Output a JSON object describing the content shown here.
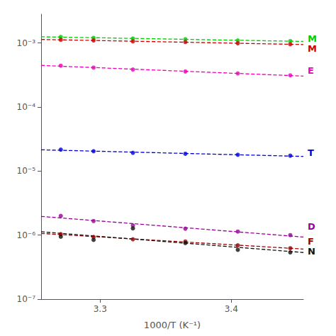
{
  "chart_data": {
    "type": "scatter",
    "xlabel": "1000/T (K⁻¹)",
    "xlim": [
      3.255,
      3.455
    ],
    "ylim": [
      -7.0,
      -2.55
    ],
    "xticks": [
      3.3,
      3.4
    ],
    "yticks": [
      {
        "value": -3,
        "label": "10⁻³"
      },
      {
        "value": -4,
        "label": "10⁻⁴"
      },
      {
        "value": -5,
        "label": "10⁻⁵"
      },
      {
        "value": -6,
        "label": "10⁻⁶"
      },
      {
        "value": -7,
        "label": "10⁻⁷"
      }
    ],
    "grid": false,
    "series": [
      {
        "color": "#00cc00",
        "marker": "circle",
        "x": [
          3.27,
          3.295,
          3.325,
          3.365,
          3.405,
          3.445
        ],
        "values": [
          -2.905,
          -2.92,
          -2.93,
          -2.94,
          -2.96,
          -2.97
        ],
        "fit": {
          "line_style": "dashed",
          "x": [
            3.255,
            3.455
          ],
          "values": [
            -2.90267,
            -2.97536
          ]
        }
      },
      {
        "color": "#cc0000",
        "marker": "circle",
        "x": [
          3.27,
          3.295,
          3.325,
          3.365,
          3.405,
          3.445
        ],
        "values": [
          -2.95,
          -2.96,
          -2.975,
          -2.985,
          -3.005,
          -3.02
        ],
        "fit": {
          "line_style": "dashed",
          "x": [
            3.255,
            3.455
          ],
          "values": [
            -2.94445,
            -3.02386
          ]
        }
      },
      {
        "color": "#ee00bb",
        "marker": "circle",
        "x": [
          3.27,
          3.295,
          3.325,
          3.365,
          3.405,
          3.445
        ],
        "values": [
          -3.355,
          -3.385,
          -3.415,
          -3.445,
          -3.475,
          -3.505
        ],
        "fit": {
          "line_style": "dashed",
          "x": [
            3.255,
            3.455
          ],
          "values": [
            -3.34982,
            -3.51715
          ]
        }
      },
      {
        "color": "#0000dd",
        "marker": "circle",
        "x": [
          3.27,
          3.295,
          3.325,
          3.365,
          3.405,
          3.445
        ],
        "values": [
          -4.665,
          -4.69,
          -4.715,
          -4.73,
          -4.745,
          -4.76
        ],
        "fit": {
          "line_style": "dashed",
          "x": [
            3.255,
            3.455
          ],
          "values": [
            -4.66807,
            -4.77123
          ]
        }
      },
      {
        "color": "#990099",
        "marker": "circle",
        "x": [
          3.27,
          3.295,
          3.325,
          3.365,
          3.405,
          3.445
        ],
        "values": [
          -5.7,
          -5.78,
          -5.85,
          -5.9,
          -5.945,
          -6.0
        ],
        "fit": {
          "line_style": "dashed",
          "x": [
            3.255,
            3.455
          ],
          "values": [
            -5.70788,
            -6.03056
          ]
        }
      },
      {
        "color": "#990000",
        "marker": "circle",
        "x": [
          3.27,
          3.295,
          3.325,
          3.365,
          3.405,
          3.445
        ],
        "values": [
          -5.985,
          -6.03,
          -6.065,
          -6.1,
          -6.16,
          -6.205
        ],
        "fit": {
          "line_style": "dashed",
          "x": [
            3.255,
            3.455
          ],
          "values": [
            -5.97385,
            -6.21798
          ]
        }
      },
      {
        "color": "#111111",
        "marker": "circle",
        "x": [
          3.27,
          3.295,
          3.325,
          3.365,
          3.405,
          3.445
        ],
        "values": [
          -6.025,
          -6.075,
          -5.895,
          -6.125,
          -6.23,
          -6.27
        ],
        "fit": {
          "line_style": "dashed",
          "x": [
            3.255,
            3.455
          ],
          "values": [
            -5.94809,
            -6.27208
          ]
        }
      }
    ],
    "annotations": [
      {
        "text": "M",
        "color": "#00cc00",
        "y": -2.93
      },
      {
        "text": "M",
        "color": "#cc0000",
        "y": -2.975
      },
      {
        "text": "E",
        "color": "#ee00bb",
        "y": -3.43
      },
      {
        "text": "T",
        "color": "#0000dd",
        "y": -4.715
      },
      {
        "text": "D",
        "color": "#990099",
        "y": -5.87
      },
      {
        "text": "F",
        "color": "#990000",
        "y": -6.1
      },
      {
        "text": "N",
        "color": "#111111",
        "y": -6.22
      }
    ]
  }
}
